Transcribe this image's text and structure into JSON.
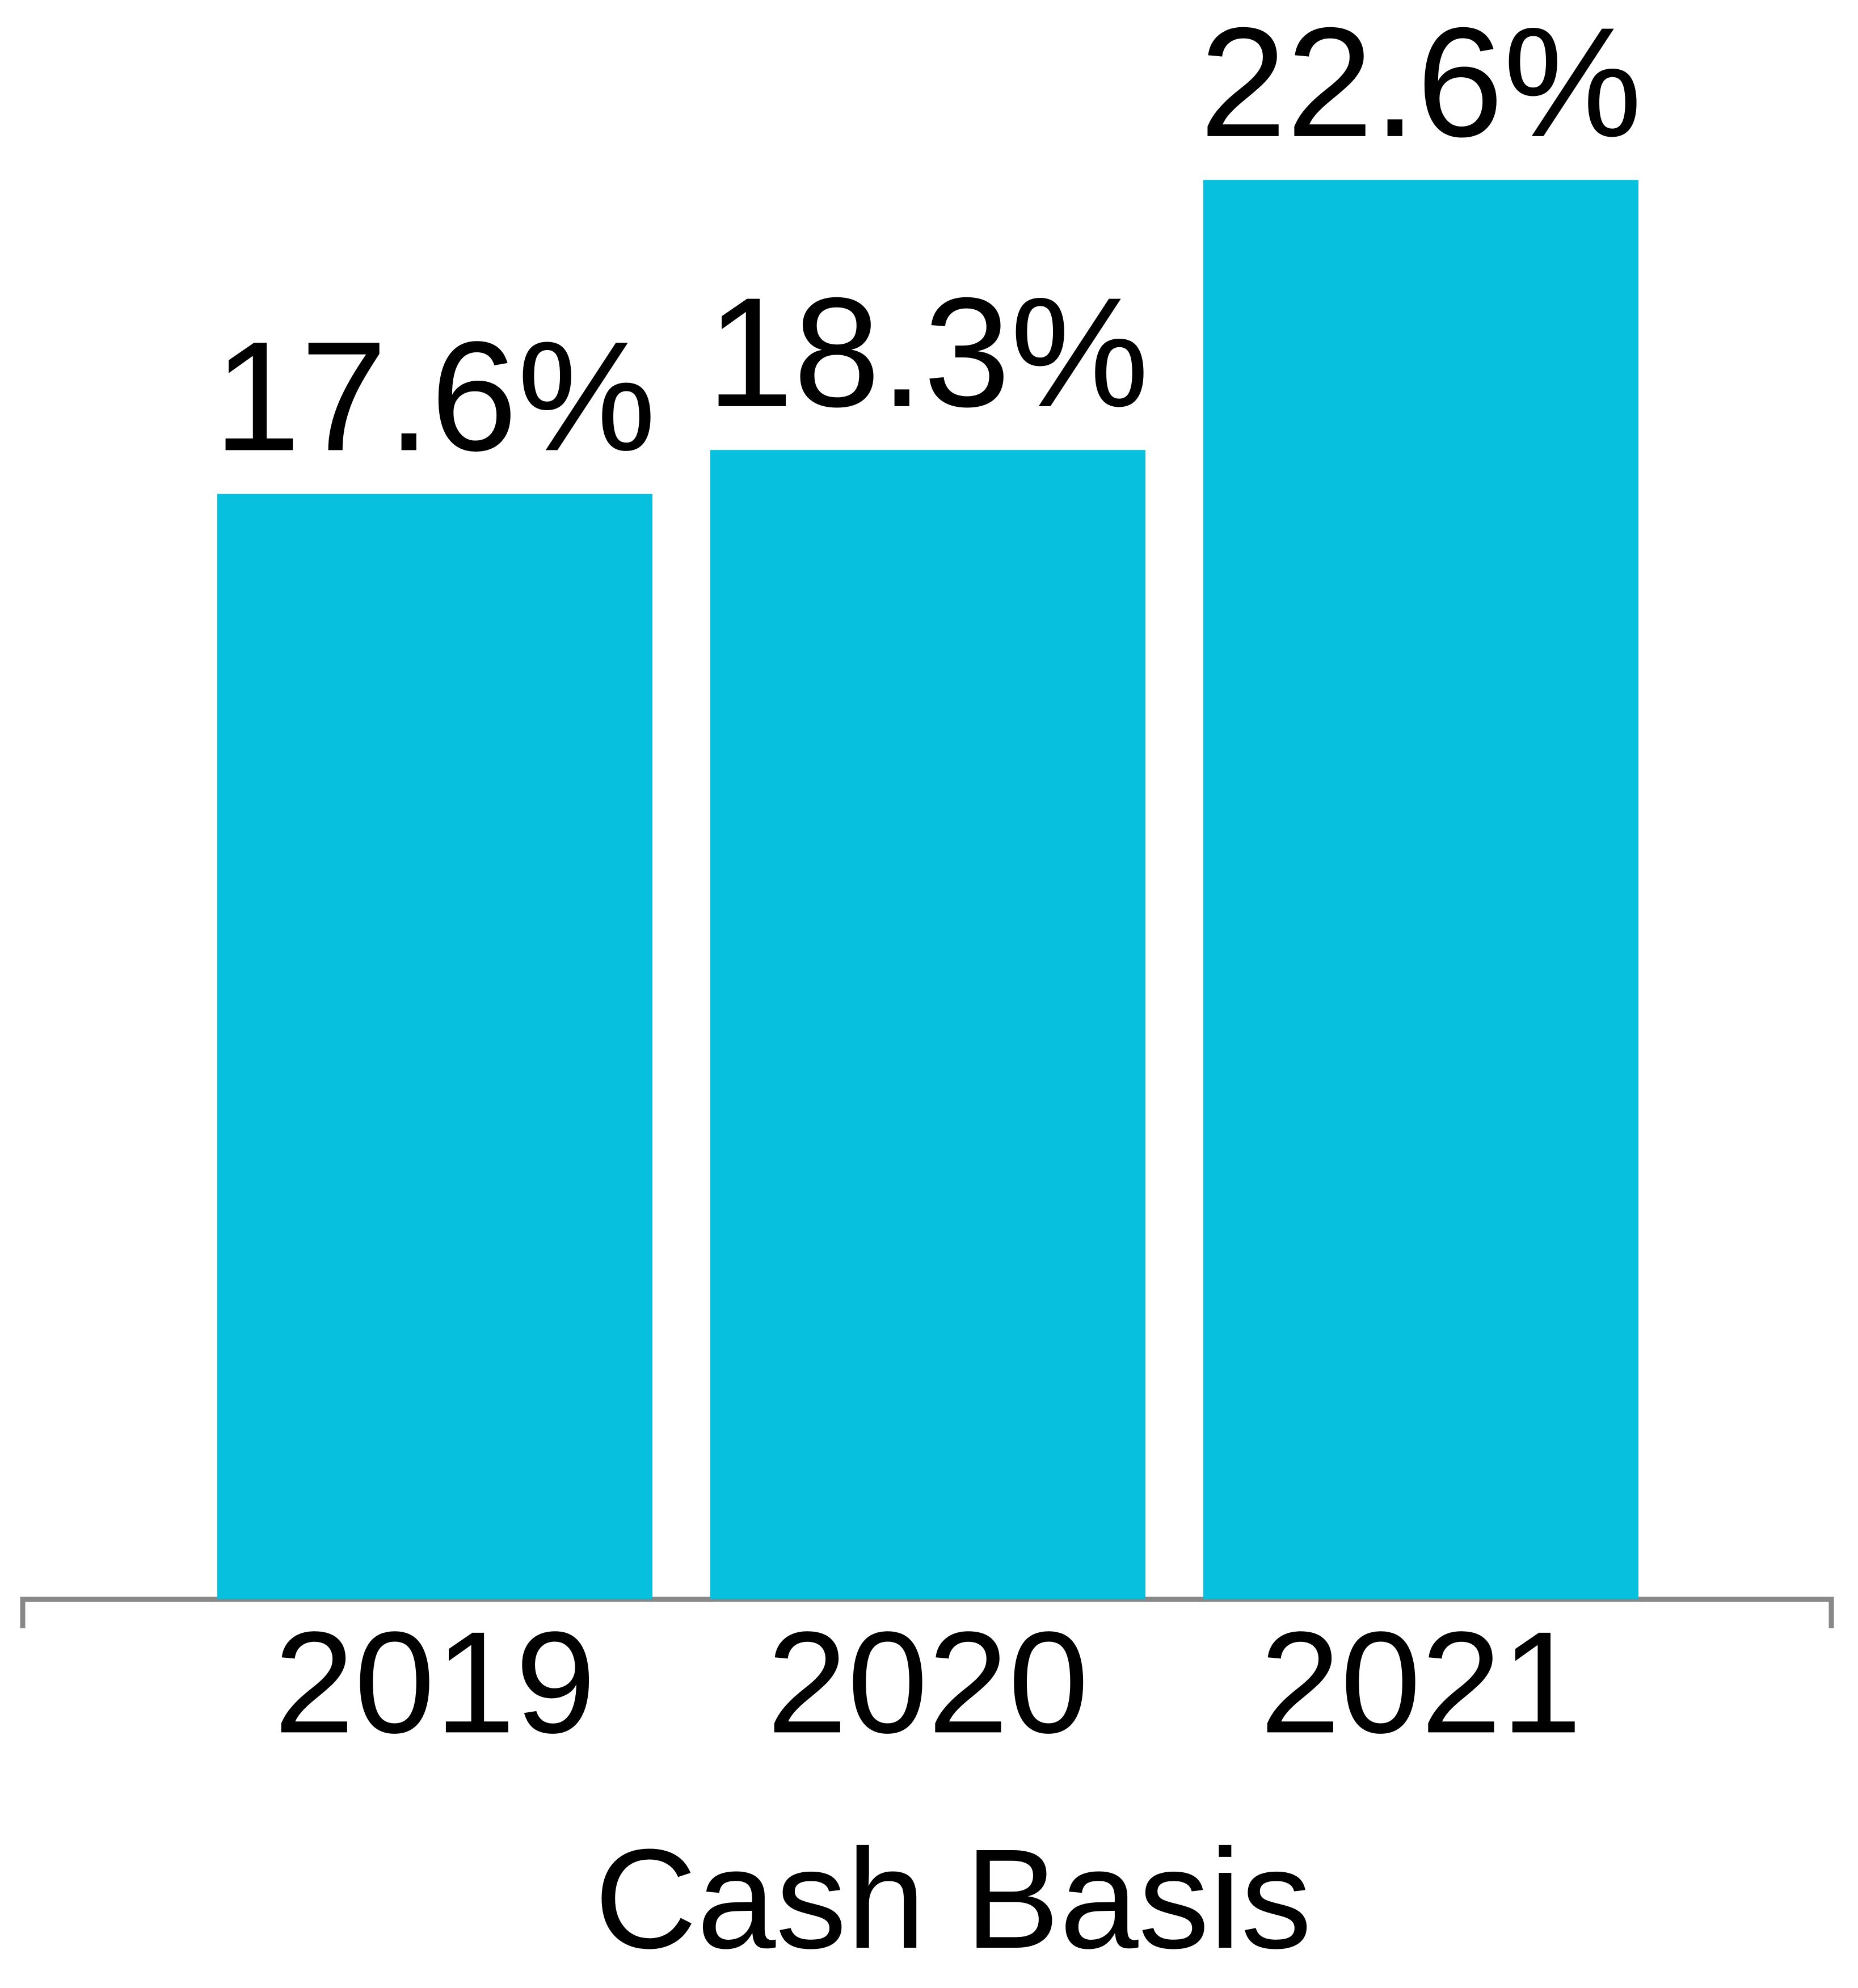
{
  "chart_data": {
    "type": "bar",
    "x_label": "Cash Basis",
    "categories": [
      "2019",
      "2020",
      "2021"
    ],
    "values": [
      17.6,
      18.3,
      22.6
    ],
    "value_labels": [
      "17.6%",
      "18.3%",
      "22.6%"
    ],
    "color": "#07c0dd"
  }
}
